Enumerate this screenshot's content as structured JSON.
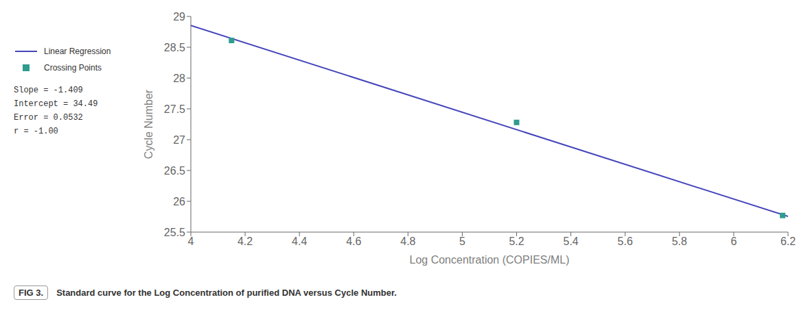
{
  "chart_data": {
    "type": "scatter",
    "title": "Standard curve for the Log Concentration of purified DNA versus Cycle Number.",
    "subtitle": "FIG 3.",
    "xlabel": "Log Concentration (COPIES/ML)",
    "ylabel": "Cycle Number",
    "xlim": [
      4.0,
      6.2
    ],
    "ylim": [
      25.5,
      29.0
    ],
    "xticks": [
      4.0,
      4.2,
      4.4,
      4.6,
      4.8,
      5.0,
      5.2,
      5.4,
      5.6,
      5.8,
      6.0,
      6.2
    ],
    "yticks": [
      25.5,
      26.0,
      26.5,
      27.0,
      27.5,
      28.0,
      28.5,
      29.0
    ],
    "grid": false,
    "legend": "left",
    "annotations": [
      "Slope = -1.409",
      "Intercept = 34.49",
      "Error = 0.0532",
      "r = -1.00"
    ],
    "series": [
      {
        "name": "Linear Regression",
        "type": "line",
        "line_style": "solid",
        "color": "#4444BB",
        "x": [
          4.0,
          6.2
        ],
        "values": [
          28.854,
          25.7542
        ]
      },
      {
        "name": "Crossing Points",
        "type": "scatter",
        "marker": "square",
        "color": "#2E9C8E",
        "x": [
          4.15,
          5.2,
          6.18
        ],
        "values": [
          28.61,
          27.28,
          25.77
        ]
      }
    ]
  }
}
